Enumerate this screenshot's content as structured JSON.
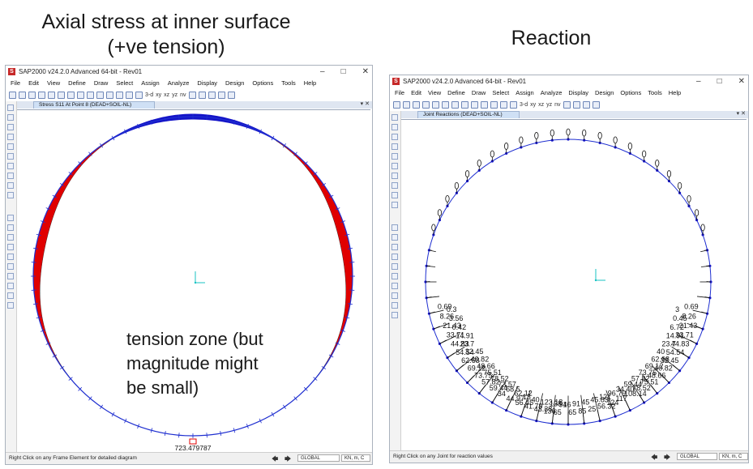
{
  "captions": {
    "left": "Axial stress at inner surface (+ve tension)",
    "right": "Reaction",
    "annotation": "tension zone (but magnitude might be small)"
  },
  "left_window": {
    "title": "SAP2000 v24.2.0 Advanced 64-bit - Rev01",
    "menu": [
      "File",
      "Edit",
      "View",
      "Define",
      "Draw",
      "Select",
      "Assign",
      "Analyze",
      "Display",
      "Design",
      "Options",
      "Tools",
      "Help"
    ],
    "toolbar_text": [
      "3-d",
      "xy",
      "xz",
      "yz",
      "nv"
    ],
    "tab": "Stress S11 At Point 8 (DEAD+SOIL-NL)",
    "value_label": "723.479787",
    "status": "Right Click on any Frame Element for detailed diagram",
    "coord_system": "GLOBAL",
    "units": "KN, m, C"
  },
  "right_window": {
    "title": "SAP2000 v24.2.0 Advanced 64-bit - Rev01",
    "menu": [
      "File",
      "Edit",
      "View",
      "Define",
      "Draw",
      "Select",
      "Assign",
      "Analyze",
      "Display",
      "Design",
      "Options",
      "Tools",
      "Help"
    ],
    "toolbar_text": [
      "3-d",
      "xy",
      "xz",
      "yz",
      "nv"
    ],
    "tab": "Joint Reactions (DEAD+SOIL-NL)",
    "status": "Right Click on any Joint for reaction values",
    "coord_system": "GLOBAL",
    "units": "KN, m, C",
    "left_labels": [
      "0.69",
      "0.3",
      "8.26",
      "3.56",
      "21.43",
      "0.42",
      "33.71",
      "14.91",
      "44.83",
      "23.7",
      "54.54",
      "32.45",
      "62.68",
      "40.82",
      "69.12",
      "48.66",
      "73.75",
      "75.51",
      "57.82",
      "78.52",
      "59.44",
      "73.57",
      "34",
      "68.5",
      "44.97",
      "62.12",
      "56.45",
      "13",
      "41.79",
      "40",
      "43.38",
      "123.18",
      "136",
      "138",
      "65",
      "91"
    ],
    "right_labels": [
      "0.69",
      "3",
      "8.26",
      "0.45",
      "21.43",
      "6.72",
      "33.71",
      "14.91",
      "44.83",
      "23.7",
      "54.54",
      "40",
      "32.45",
      "62.68",
      "40.82",
      "69.12",
      "48.66",
      "73.75",
      "75.51",
      "57.82",
      "78.52",
      "59.44",
      "108.14",
      "34.40",
      "117",
      "96.79",
      "124",
      "121",
      "56.32",
      "45.83",
      "25",
      "45",
      "85",
      "91",
      "65",
      "46"
    ]
  },
  "colors": {
    "compression": "#1414c8",
    "tension": "#e00000",
    "reaction": "#1414c8",
    "frame": "#1f2fd0",
    "axes": "#19c3c3"
  }
}
